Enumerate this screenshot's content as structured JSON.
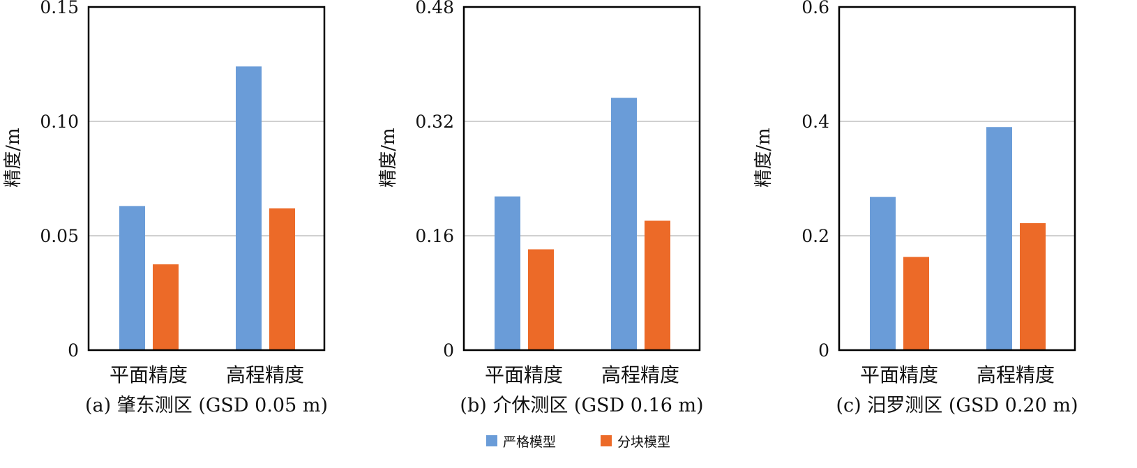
{
  "colors": {
    "strict": "#6a9cd8",
    "block": "#ec6a28",
    "grid": "#d0d0d0"
  },
  "legend": [
    "严格模型",
    "分块模型"
  ],
  "chart_data": [
    {
      "type": "bar",
      "title": "(a) 肇东测区 (GSD 0.05 m)",
      "ylabel": "精度/m",
      "categories": [
        "平面精度",
        "高程精度"
      ],
      "ylim": [
        0,
        0.15
      ],
      "yticks": [
        0,
        0.05,
        0.1,
        0.15
      ],
      "ytick_labels": [
        "0",
        "0.05",
        "0.10",
        "0.15"
      ],
      "series": [
        {
          "name": "严格模型",
          "values": [
            0.063,
            0.124
          ]
        },
        {
          "name": "分块模型",
          "values": [
            0.0375,
            0.062
          ]
        }
      ]
    },
    {
      "type": "bar",
      "title": "(b) 介休测区 (GSD 0.16 m)",
      "ylabel": "精度/m",
      "categories": [
        "平面精度",
        "高程精度"
      ],
      "ylim": [
        0,
        0.48
      ],
      "yticks": [
        0,
        0.16,
        0.32,
        0.48
      ],
      "ytick_labels": [
        "0",
        "0.16",
        "0.32",
        "0.48"
      ],
      "series": [
        {
          "name": "严格模型",
          "values": [
            0.215,
            0.353
          ]
        },
        {
          "name": "分块模型",
          "values": [
            0.141,
            0.181
          ]
        }
      ]
    },
    {
      "type": "bar",
      "title": "(c) 汨罗测区 (GSD 0.20 m)",
      "ylabel": "精度/m",
      "categories": [
        "平面精度",
        "高程精度"
      ],
      "ylim": [
        0,
        0.6
      ],
      "yticks": [
        0,
        0.2,
        0.4,
        0.6
      ],
      "ytick_labels": [
        "0",
        "0.2",
        "0.4",
        "0.6"
      ],
      "series": [
        {
          "name": "严格模型",
          "values": [
            0.268,
            0.39
          ]
        },
        {
          "name": "分块模型",
          "values": [
            0.163,
            0.222
          ]
        }
      ]
    }
  ]
}
